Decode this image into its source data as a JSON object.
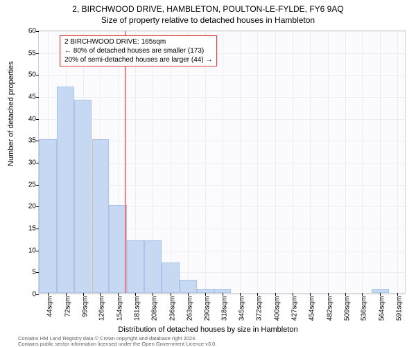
{
  "title_line1": "2, BIRCHWOOD DRIVE, HAMBLETON, POULTON-LE-FYLDE, FY6 9AQ",
  "title_line2": "Size of property relative to detached houses in Hambleton",
  "ylabel": "Number of detached properties",
  "xlabel": "Distribution of detached houses by size in Hambleton",
  "chart": {
    "type": "histogram",
    "ylim": [
      0,
      60
    ],
    "ytick_step": 5,
    "xtick_labels": [
      "44sqm",
      "72sqm",
      "99sqm",
      "126sqm",
      "154sqm",
      "181sqm",
      "208sqm",
      "236sqm",
      "263sqm",
      "290sqm",
      "318sqm",
      "345sqm",
      "372sqm",
      "400sqm",
      "427sqm",
      "454sqm",
      "482sqm",
      "509sqm",
      "536sqm",
      "564sqm",
      "591sqm"
    ],
    "xtick_values": [
      44,
      72,
      99,
      126,
      154,
      181,
      208,
      236,
      263,
      290,
      318,
      345,
      372,
      400,
      427,
      454,
      482,
      509,
      536,
      564,
      591
    ],
    "x_range": [
      30,
      605
    ],
    "bars": [
      {
        "x0": 30,
        "x1": 58,
        "y": 35
      },
      {
        "x0": 58,
        "x1": 85,
        "y": 47
      },
      {
        "x0": 85,
        "x1": 113,
        "y": 44
      },
      {
        "x0": 113,
        "x1": 140,
        "y": 35
      },
      {
        "x0": 140,
        "x1": 168,
        "y": 20
      },
      {
        "x0": 168,
        "x1": 195,
        "y": 12
      },
      {
        "x0": 195,
        "x1": 222,
        "y": 12
      },
      {
        "x0": 222,
        "x1": 250,
        "y": 7
      },
      {
        "x0": 250,
        "x1": 277,
        "y": 3
      },
      {
        "x0": 277,
        "x1": 304,
        "y": 1
      },
      {
        "x0": 304,
        "x1": 331,
        "y": 1
      },
      {
        "x0": 551,
        "x1": 578,
        "y": 1
      }
    ],
    "reference_line_x": 165,
    "bar_fill": "#c7d8f2",
    "bar_border": "#aac3e8",
    "grid_color": "#ececf2",
    "refline_color": "#d94040",
    "plot_bg": "#fbfbfd",
    "plot_border": "#d0d0d0"
  },
  "annotation": {
    "line1": "2 BIRCHWOOD DRIVE: 165sqm",
    "line2": "← 80% of detached houses are smaller (173)",
    "line3": "20% of semi-detached houses are larger (44) →"
  },
  "footer": {
    "line1": "Contains HM Land Registry data © Crown copyright and database right 2024.",
    "line2": "Contains public sector information licensed under the Open Government Licence v3.0."
  }
}
